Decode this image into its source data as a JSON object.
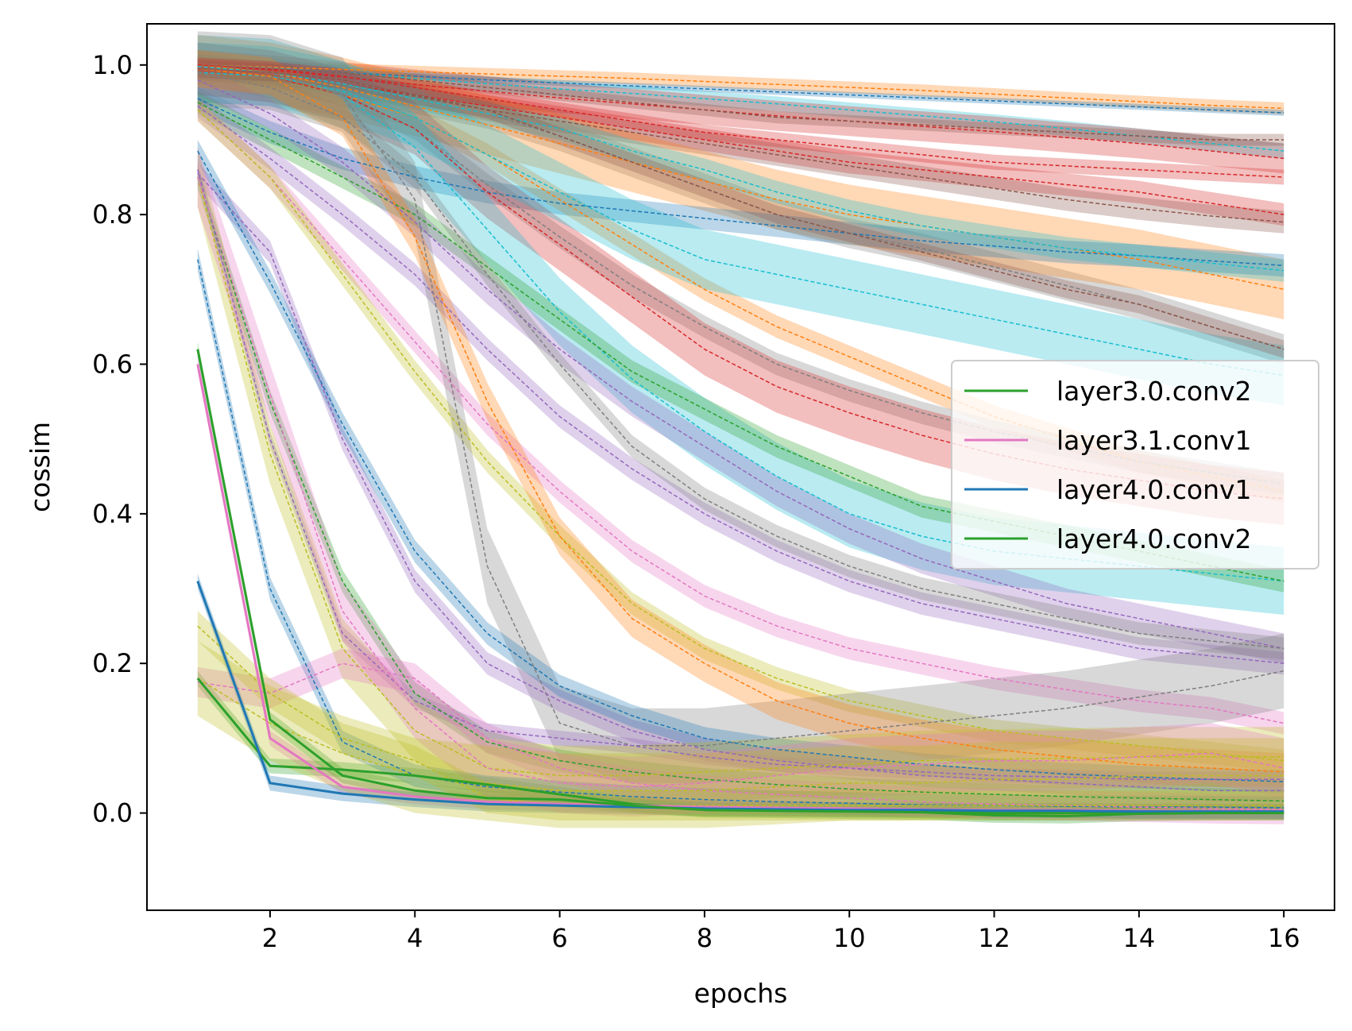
{
  "chart_data": {
    "type": "line",
    "title": "",
    "xlabel": "epochs",
    "ylabel": "cossim",
    "xlim": [
      0.3,
      16.7
    ],
    "ylim": [
      -0.13,
      1.055
    ],
    "xticks": [
      2,
      4,
      6,
      8,
      10,
      12,
      14,
      16
    ],
    "xtick_labels": [
      "2",
      "4",
      "6",
      "8",
      "10",
      "12",
      "14",
      "16"
    ],
    "yticks": [
      0.0,
      0.2,
      0.4,
      0.6,
      0.8,
      1.0
    ],
    "ytick_labels": [
      "0.0",
      "0.2",
      "0.4",
      "0.6",
      "0.8",
      "1.0"
    ],
    "grid": false,
    "legend_position": "center-right",
    "x": [
      1,
      2,
      3,
      4,
      5,
      6,
      7,
      8,
      9,
      10,
      11,
      12,
      13,
      14,
      15,
      16
    ],
    "series": [
      {
        "name": "layer3.0.conv2",
        "color": "#2ca02c",
        "highlight": true,
        "values": [
          0.18,
          0.063,
          0.058,
          0.05,
          0.038,
          0.025,
          0.012,
          0.005,
          0.005,
          0.005,
          0.003,
          0.0,
          0.0,
          0.001,
          0.001,
          0.001
        ],
        "band": 0.01
      },
      {
        "name": "layer3.1.conv1",
        "color": "#e377c2",
        "highlight": true,
        "values": [
          0.6,
          0.1,
          0.035,
          0.022,
          0.015,
          0.012,
          0.01,
          0.008,
          0.007,
          0.006,
          0.005,
          0.004,
          0.004,
          0.003,
          0.003,
          0.003
        ],
        "band": 0.01
      },
      {
        "name": "layer4.0.conv1",
        "color": "#1f77b4",
        "highlight": true,
        "values": [
          0.31,
          0.04,
          0.026,
          0.018,
          0.012,
          0.01,
          0.008,
          0.006,
          0.005,
          0.004,
          0.004,
          0.003,
          0.003,
          0.002,
          0.002,
          0.002
        ],
        "band": 0.01
      },
      {
        "name": "layer4.0.conv2",
        "color": "#2ca02c",
        "highlight": true,
        "values": [
          0.62,
          0.125,
          0.05,
          0.03,
          0.02,
          0.018,
          0.01,
          0.004,
          0.003,
          0.002,
          0.001,
          -0.003,
          -0.004,
          -0.001,
          0.0,
          0.0
        ],
        "band": 0.01
      },
      {
        "color": "#ff7f0e",
        "values": [
          1.0,
          0.997,
          0.994,
          0.991,
          0.988,
          0.985,
          0.982,
          0.978,
          0.974,
          0.97,
          0.966,
          0.961,
          0.956,
          0.951,
          0.946,
          0.942
        ],
        "band": 0.008
      },
      {
        "color": "#1f77b4",
        "values": [
          1.0,
          0.995,
          0.99,
          0.985,
          0.98,
          0.976,
          0.972,
          0.968,
          0.964,
          0.96,
          0.956,
          0.952,
          0.948,
          0.944,
          0.94,
          0.936
        ],
        "band": 0.004
      },
      {
        "color": "#17becf",
        "values": [
          1.0,
          0.996,
          0.99,
          0.982,
          0.975,
          0.968,
          0.962,
          0.955,
          0.948,
          0.94,
          0.932,
          0.924,
          0.915,
          0.905,
          0.895,
          0.885
        ],
        "band": 0.01
      },
      {
        "color": "#d62728",
        "values": [
          1.0,
          0.993,
          0.984,
          0.974,
          0.965,
          0.956,
          0.948,
          0.94,
          0.932,
          0.925,
          0.918,
          0.911,
          0.903,
          0.895,
          0.885,
          0.875
        ],
        "band": 0.02
      },
      {
        "color": "#8c564b",
        "values": [
          0.998,
          0.995,
          0.99,
          0.98,
          0.97,
          0.96,
          0.95,
          0.94,
          0.93,
          0.925,
          0.92,
          0.915,
          0.91,
          0.905,
          0.9,
          0.9
        ],
        "band": 0.008
      },
      {
        "color": "#d62728",
        "values": [
          0.995,
          0.99,
          0.975,
          0.96,
          0.945,
          0.93,
          0.915,
          0.9,
          0.885,
          0.87,
          0.86,
          0.85,
          0.84,
          0.83,
          0.815,
          0.8
        ],
        "band": 0.015
      },
      {
        "color": "#8c564b",
        "values": [
          1.0,
          0.99,
          0.975,
          0.958,
          0.94,
          0.925,
          0.91,
          0.895,
          0.88,
          0.865,
          0.85,
          0.835,
          0.82,
          0.808,
          0.798,
          0.79
        ],
        "band": 0.015
      },
      {
        "color": "#7f7f7f",
        "values": [
          1.0,
          0.99,
          0.975,
          0.955,
          0.935,
          0.905,
          0.87,
          0.835,
          0.8,
          0.775,
          0.755,
          0.73,
          0.705,
          0.68,
          0.65,
          0.62
        ],
        "band": 0.02
      },
      {
        "color": "#ff7f0e",
        "values": [
          1.0,
          0.99,
          0.97,
          0.945,
          0.92,
          0.895,
          0.87,
          0.845,
          0.82,
          0.8,
          0.785,
          0.77,
          0.755,
          0.74,
          0.72,
          0.7
        ],
        "band": 0.04
      },
      {
        "color": "#1f77b4",
        "values": [
          0.955,
          0.91,
          0.875,
          0.85,
          0.83,
          0.815,
          0.805,
          0.795,
          0.785,
          0.775,
          0.765,
          0.758,
          0.75,
          0.745,
          0.738,
          0.732
        ],
        "band": 0.015
      },
      {
        "color": "#17becf",
        "values": [
          0.998,
          0.99,
          0.975,
          0.955,
          0.935,
          0.915,
          0.885,
          0.86,
          0.83,
          0.805,
          0.785,
          0.77,
          0.755,
          0.745,
          0.735,
          0.725
        ],
        "band": 0.015
      },
      {
        "color": "#ff7f0e",
        "values": [
          0.995,
          0.985,
          0.96,
          0.93,
          0.88,
          0.82,
          0.76,
          0.7,
          0.65,
          0.61,
          0.57,
          0.53,
          0.5,
          0.47,
          0.45,
          0.43
        ],
        "band": 0.015
      },
      {
        "color": "#7f7f7f",
        "values": [
          0.995,
          0.99,
          0.96,
          0.915,
          0.84,
          0.77,
          0.705,
          0.65,
          0.6,
          0.565,
          0.535,
          0.51,
          0.49,
          0.47,
          0.455,
          0.44
        ],
        "band": 0.015
      },
      {
        "color": "#d62728",
        "values": [
          0.995,
          0.985,
          0.96,
          0.915,
          0.83,
          0.76,
          0.69,
          0.62,
          0.57,
          0.535,
          0.505,
          0.48,
          0.46,
          0.445,
          0.43,
          0.42
        ],
        "band": 0.035
      },
      {
        "color": "#17becf",
        "values": [
          0.995,
          0.99,
          0.96,
          0.89,
          0.78,
          0.67,
          0.58,
          0.51,
          0.45,
          0.4,
          0.37,
          0.35,
          0.34,
          0.33,
          0.32,
          0.31
        ],
        "band": 0.045
      },
      {
        "color": "#17becf",
        "values": [
          0.99,
          0.985,
          0.965,
          0.93,
          0.88,
          0.83,
          0.78,
          0.74,
          0.72,
          0.7,
          0.68,
          0.66,
          0.64,
          0.62,
          0.6,
          0.585
        ],
        "band": 0.04
      },
      {
        "color": "#2ca02c",
        "values": [
          0.95,
          0.9,
          0.85,
          0.8,
          0.73,
          0.66,
          0.59,
          0.54,
          0.49,
          0.45,
          0.41,
          0.39,
          0.37,
          0.35,
          0.33,
          0.31
        ],
        "band": 0.015
      },
      {
        "color": "#9467bd",
        "values": [
          0.98,
          0.935,
          0.87,
          0.79,
          0.7,
          0.62,
          0.55,
          0.49,
          0.43,
          0.38,
          0.34,
          0.31,
          0.28,
          0.26,
          0.24,
          0.22
        ],
        "band": 0.02
      },
      {
        "color": "#9467bd",
        "values": [
          0.945,
          0.875,
          0.8,
          0.72,
          0.62,
          0.53,
          0.46,
          0.4,
          0.35,
          0.31,
          0.28,
          0.26,
          0.24,
          0.22,
          0.21,
          0.2
        ],
        "band": 0.015
      },
      {
        "color": "#7f7f7f",
        "values": [
          0.99,
          0.97,
          0.93,
          0.85,
          0.72,
          0.6,
          0.49,
          0.42,
          0.37,
          0.33,
          0.3,
          0.28,
          0.26,
          0.24,
          0.23,
          0.22
        ],
        "band": 0.015
      },
      {
        "color": "#e377c2",
        "values": [
          0.94,
          0.85,
          0.74,
          0.63,
          0.52,
          0.43,
          0.35,
          0.29,
          0.25,
          0.22,
          0.2,
          0.18,
          0.165,
          0.15,
          0.14,
          0.12
        ],
        "band": 0.015
      },
      {
        "color": "#bcbd22",
        "values": [
          0.94,
          0.85,
          0.72,
          0.59,
          0.47,
          0.37,
          0.28,
          0.22,
          0.18,
          0.15,
          0.13,
          0.11,
          0.1,
          0.09,
          0.08,
          0.07
        ],
        "band": 0.015
      },
      {
        "color": "#7f7f7f",
        "values": [
          0.995,
          0.99,
          0.96,
          0.82,
          0.33,
          0.12,
          0.09,
          0.09,
          0.1,
          0.11,
          0.12,
          0.13,
          0.14,
          0.155,
          0.17,
          0.19
        ],
        "band": 0.05
      },
      {
        "color": "#ff7f0e",
        "values": [
          0.995,
          0.985,
          0.93,
          0.77,
          0.55,
          0.37,
          0.26,
          0.2,
          0.15,
          0.12,
          0.1,
          0.085,
          0.075,
          0.065,
          0.06,
          0.055
        ],
        "band": 0.025
      },
      {
        "color": "#9467bd",
        "values": [
          0.855,
          0.75,
          0.5,
          0.31,
          0.2,
          0.15,
          0.11,
          0.085,
          0.07,
          0.06,
          0.05,
          0.045,
          0.04,
          0.035,
          0.03,
          0.03
        ],
        "band": 0.015
      },
      {
        "color": "#1f77b4",
        "values": [
          0.885,
          0.71,
          0.52,
          0.35,
          0.24,
          0.17,
          0.13,
          0.1,
          0.085,
          0.075,
          0.065,
          0.058,
          0.052,
          0.048,
          0.045,
          0.042
        ],
        "band": 0.015
      },
      {
        "color": "#9467bd",
        "values": [
          0.86,
          0.5,
          0.24,
          0.15,
          0.11,
          0.1,
          0.09,
          0.075,
          0.065,
          0.06,
          0.055,
          0.05,
          0.048,
          0.045,
          0.045,
          0.045
        ],
        "band": 0.01
      },
      {
        "color": "#2ca02c",
        "values": [
          0.85,
          0.55,
          0.31,
          0.16,
          0.095,
          0.07,
          0.055,
          0.045,
          0.038,
          0.032,
          0.028,
          0.025,
          0.022,
          0.02,
          0.018,
          0.016
        ],
        "band": 0.015
      },
      {
        "color": "#bcbd22",
        "values": [
          0.85,
          0.48,
          0.22,
          0.11,
          0.06,
          0.05,
          0.05,
          0.055,
          0.06,
          0.065,
          0.07,
          0.072,
          0.073,
          0.075,
          0.075,
          0.075
        ],
        "band": 0.04
      },
      {
        "color": "#e377c2",
        "values": [
          0.85,
          0.56,
          0.27,
          0.14,
          0.06,
          0.04,
          0.035,
          0.04,
          0.05,
          0.06,
          0.065,
          0.07,
          0.07,
          0.075,
          0.08,
          0.06
        ],
        "band": 0.04
      },
      {
        "color": "#1f77b4",
        "values": [
          0.74,
          0.3,
          0.095,
          0.05,
          0.035,
          0.028,
          0.022,
          0.018,
          0.015,
          0.013,
          0.011,
          0.01,
          0.009,
          0.008,
          0.008,
          0.007
        ],
        "band": 0.015
      },
      {
        "color": "#e377c2",
        "values": [
          0.175,
          0.16,
          0.2,
          0.18,
          0.1,
          0.06,
          0.04,
          0.03,
          0.025,
          0.02,
          0.015,
          0.012,
          0.01,
          0.008,
          0.006,
          0.005
        ],
        "band": 0.02
      },
      {
        "color": "#bcbd22",
        "values": [
          0.25,
          0.16,
          0.1,
          0.07,
          0.02,
          0.01,
          0.01,
          0.01,
          0.01,
          0.01,
          0.01,
          0.01,
          0.01,
          0.01,
          0.01,
          0.01
        ],
        "band": 0.02
      },
      {
        "color": "#8c564b",
        "values": [
          0.995,
          0.99,
          0.98,
          0.96,
          0.94,
          0.905,
          0.87,
          0.835,
          0.8,
          0.775,
          0.75,
          0.725,
          0.7,
          0.68,
          0.65,
          0.62
        ],
        "band": 0.012
      },
      {
        "color": "#bcbd22",
        "values": [
          0.18,
          0.12,
          0.08,
          0.05,
          0.04,
          0.03,
          0.03,
          0.03,
          0.035,
          0.04,
          0.04,
          0.045,
          0.045,
          0.05,
          0.05,
          0.05
        ],
        "band": 0.05
      },
      {
        "color": "#d62728",
        "values": [
          1.0,
          0.995,
          0.985,
          0.97,
          0.955,
          0.94,
          0.925,
          0.91,
          0.9,
          0.89,
          0.88,
          0.87,
          0.865,
          0.86,
          0.855,
          0.85
        ],
        "band": 0.01
      }
    ]
  }
}
